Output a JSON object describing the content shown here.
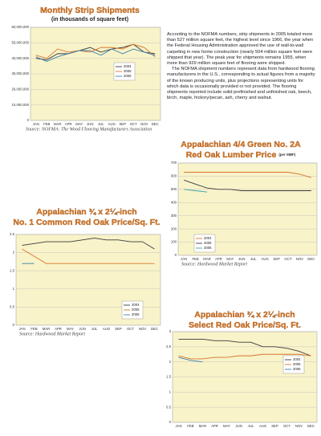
{
  "chart_data": [
    {
      "type": "line",
      "title": "Monthly Strip Shipments",
      "subtitle": "(in thousands of square feet)",
      "categories": [
        "JAN",
        "FEB",
        "MAR",
        "APR",
        "MAY",
        "JUN",
        "JUL",
        "AUG",
        "SEP",
        "OCT",
        "NOV",
        "DEC"
      ],
      "series": [
        {
          "name": "2004",
          "color": "#3a3a3a",
          "values": [
            40000000,
            39000000,
            43000000,
            43000000,
            45000000,
            47000000,
            44000000,
            46000000,
            47000000,
            49000000,
            44000000,
            43000000
          ]
        },
        {
          "name": "2005",
          "color": "#d9742e",
          "values": [
            42000000,
            40000000,
            46000000,
            44000000,
            45000000,
            44000000,
            47000000,
            47000000,
            46000000,
            49000000,
            47000000,
            41000000
          ]
        },
        {
          "name": "2006",
          "color": "#3b7fb0",
          "values": [
            41000000,
            38000000,
            41000000,
            43000000,
            45000000,
            45000000,
            42000000,
            46000000,
            43000000,
            46000000,
            44000000,
            42000000
          ]
        }
      ],
      "ylim": [
        0,
        60000000
      ],
      "yticks": [
        {
          "value": 0,
          "label": "0"
        },
        {
          "value": 10000000,
          "label": "10,000,000"
        },
        {
          "value": 20000000,
          "label": "20,000,000"
        },
        {
          "value": 30000000,
          "label": "30,000,000"
        },
        {
          "value": 40000000,
          "label": "40,000,000"
        },
        {
          "value": 50000000,
          "label": "50,000,000"
        },
        {
          "value": 60000000,
          "label": "60,000,000"
        }
      ],
      "grid": true,
      "legend": "center-right",
      "source": "Source: NOFMA: The Wood Flooring Manufacturers Association"
    },
    {
      "type": "line",
      "title_lines": [
        "Appalachian 4/4 Green No. 2A",
        "Red Oak Lumber Price"
      ],
      "title_note": "(per MBF)",
      "categories": [
        "JAN",
        "FEB",
        "MAR",
        "APR",
        "MAY",
        "JUN",
        "JUL",
        "AUG",
        "SEP",
        "OCT",
        "NOV",
        "DEC"
      ],
      "series": [
        {
          "name": "2004",
          "color": "#d9742e",
          "values": [
            630,
            630,
            630,
            630,
            630,
            630,
            630,
            630,
            630,
            630,
            615,
            590
          ]
        },
        {
          "name": "2005",
          "color": "#3a3a3a",
          "values": [
            570,
            540,
            510,
            500,
            500,
            490,
            490,
            490,
            490,
            490,
            490,
            490
          ]
        },
        {
          "name": "2006",
          "color": "#3b9fb0",
          "values": [
            500,
            490,
            480,
            null,
            null,
            null,
            null,
            null,
            null,
            null,
            null,
            null
          ]
        }
      ],
      "ylim": [
        0,
        700
      ],
      "yticks": [
        0,
        100,
        200,
        300,
        400,
        500,
        600,
        700
      ],
      "grid": true,
      "legend": "lower-left",
      "source": "Source: Hardwood Market Report"
    },
    {
      "type": "line",
      "title_lines": [
        "Appalachian ¾ x 2¼-inch",
        "No. 1 Common Red Oak Price/Sq. Ft."
      ],
      "categories": [
        "JAN",
        "FEB",
        "MAR",
        "APR",
        "MAY",
        "JUN",
        "JUL",
        "AUG",
        "SEP",
        "OCT",
        "NOV",
        "DEC"
      ],
      "series": [
        {
          "name": "2004",
          "color": "#3a3a3a",
          "values": [
            2.2,
            2.25,
            2.3,
            2.3,
            2.3,
            2.35,
            2.4,
            2.35,
            2.35,
            2.3,
            2.3,
            2.1
          ]
        },
        {
          "name": "2005",
          "color": "#d9742e",
          "values": [
            2.1,
            1.9,
            1.7,
            1.7,
            1.7,
            1.7,
            1.7,
            1.7,
            1.7,
            1.7,
            1.7,
            1.7
          ]
        },
        {
          "name": "2006",
          "color": "#3b7fb0",
          "values": [
            1.7,
            1.7,
            null,
            null,
            null,
            null,
            null,
            null,
            null,
            null,
            null,
            null
          ]
        }
      ],
      "ylim": [
        0,
        2.5
      ],
      "yticks": [
        0,
        0.5,
        1,
        1.5,
        2,
        2.5
      ],
      "grid": true,
      "legend": "lower-right",
      "source": "Source: Hardwood Market Report"
    },
    {
      "type": "line",
      "title_lines": [
        "Appalachian ¾ x 2¼-inch",
        "Select Red Oak Price/Sq. Ft."
      ],
      "categories": [
        "JAN",
        "FEB",
        "MAR",
        "APR",
        "MAY",
        "JUN",
        "JUL",
        "AUG",
        "SEP",
        "OCT",
        "NOV",
        "DEC"
      ],
      "series": [
        {
          "name": "2004",
          "color": "#3a3a3a",
          "values": [
            2.75,
            2.75,
            2.75,
            2.7,
            2.7,
            2.65,
            2.65,
            2.5,
            2.5,
            2.45,
            2.35,
            2.2
          ]
        },
        {
          "name": "2005",
          "color": "#d9742e",
          "values": [
            2.2,
            2.1,
            2.1,
            2.15,
            2.15,
            2.2,
            2.2,
            2.25,
            2.25,
            2.25,
            2.25,
            2.2
          ]
        },
        {
          "name": "2006",
          "color": "#3b7fb0",
          "values": [
            2.15,
            2.05,
            2.0,
            null,
            null,
            null,
            null,
            null,
            null,
            null,
            null,
            null
          ]
        }
      ],
      "ylim": [
        0,
        3
      ],
      "yticks": [
        0,
        0.5,
        1,
        1.5,
        2,
        2.5,
        3
      ],
      "grid": true,
      "legend": "upper-right"
    }
  ],
  "text": {
    "paragraphs": [
      "According to the NOFMA numbers, strip shipments in 2005 totaled more than 527 million square feet, the highest level since 1966, the year when the Federal Housing Administration approved the use of wall-to-wall carpeting in new home construction (nearly 504 million square feet were shipped that year). The peak year for shipments remains 1955, when more than 929 million square feet of flooring were shipped.",
      "The NOFMA shipment numbers represent data from hardwood flooring manufacturers in the U.S., corresponding to actual figures from a majority of the known producing units, plus projections representing units for which data is occasionally provided or not provided. The flooring shipments reported include solid prefinished and unfinished oak, beech, birch, maple, hickory/pecan, ash, cherry and walnut."
    ]
  }
}
